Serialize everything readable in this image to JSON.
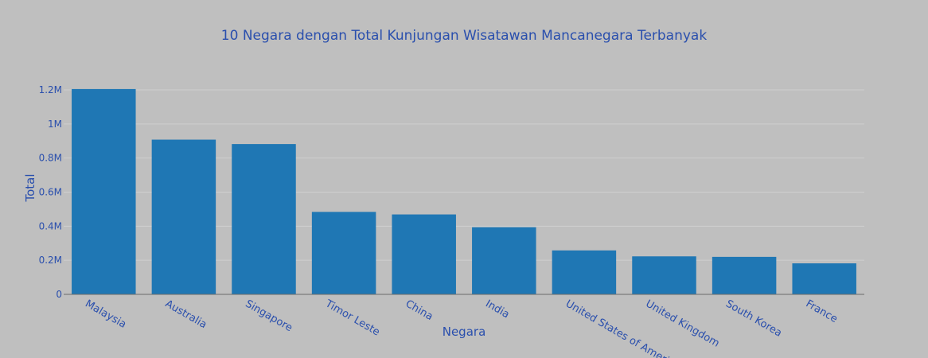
{
  "chart_data": {
    "type": "bar",
    "title": "10 Negara dengan Total Kunjungan Wisatawan Mancanegara Terbanyak",
    "xlabel": "Negara",
    "ylabel": "Total",
    "categories": [
      "Malaysia",
      "Australia",
      "Singapore",
      "Timor Leste",
      "China",
      "India",
      "United States of America",
      "United Kingdom",
      "South Korea",
      "France"
    ],
    "values": [
      1205000,
      908000,
      882000,
      484000,
      469000,
      394000,
      258000,
      223000,
      220000,
      182000
    ],
    "ylim": [
      0,
      1270000
    ],
    "yticks": [
      0,
      200000,
      400000,
      600000,
      800000,
      1000000,
      1200000
    ],
    "ytick_labels": [
      "0",
      "0.2M",
      "0.4M",
      "0.6M",
      "0.8M",
      "1M",
      "1.2M"
    ],
    "grid": true,
    "legend": "none",
    "colors": {
      "bar": "#1f77b4",
      "text": "#2a4fad",
      "grid": "#cfcfcf",
      "axis": "#6b6b6b",
      "background": "#bfbfbf"
    }
  }
}
